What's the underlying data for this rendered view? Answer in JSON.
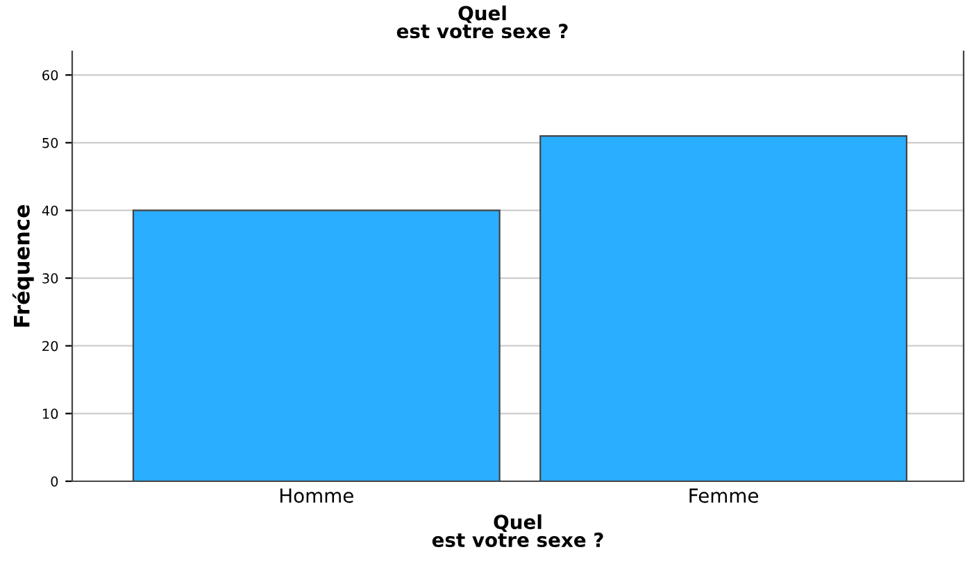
{
  "chart_data": {
    "type": "bar",
    "title": "Quel\nest votre sexe ?",
    "xlabel": "Quel\nest votre sexe ?",
    "ylabel": "Fréquence",
    "categories": [
      "Homme",
      "Femme"
    ],
    "values": [
      40,
      51
    ],
    "color": "#2aaeff",
    "ylim": [
      0,
      63.5
    ],
    "yticks": [
      0,
      10,
      20,
      30,
      40,
      50,
      60
    ],
    "grid": "y"
  }
}
